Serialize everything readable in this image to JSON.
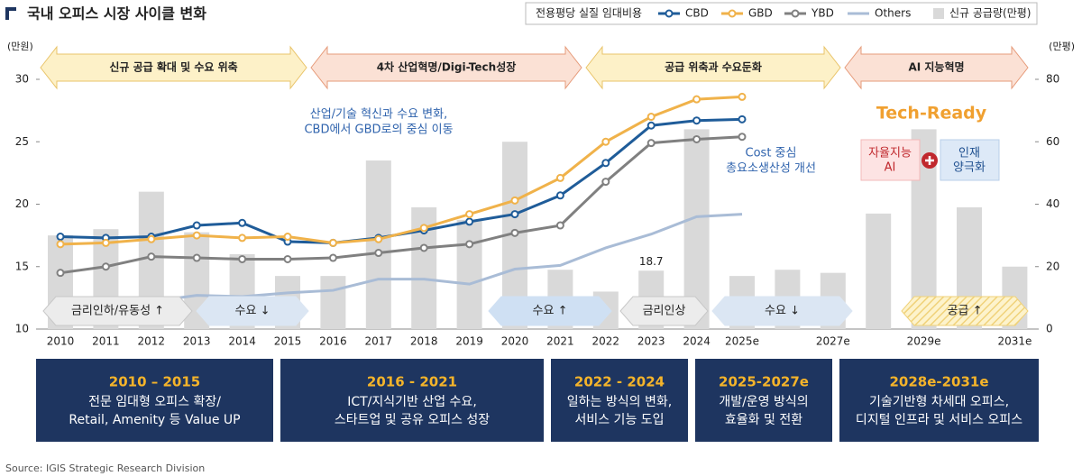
{
  "chart_data": {
    "type": "bar-line",
    "title": "국내 오피스 시장 사이클 변화",
    "legend_title": "전용평당 실질 임대비용",
    "source": "Source: IGIS Strategic Research Division",
    "y_label": "(만원)",
    "y2_label": "(만평)",
    "categories": [
      "2010",
      "2011",
      "2012",
      "2013",
      "2014",
      "2015",
      "2016",
      "2017",
      "2018",
      "2019",
      "2020",
      "2021",
      "2022",
      "2023",
      "2024",
      "2025e",
      null,
      "2027e",
      null,
      "2029e",
      null,
      "2031e"
    ],
    "ylim": [
      10,
      30
    ],
    "yticks": [
      10,
      15,
      20,
      25,
      30
    ],
    "y2lim": [
      0,
      80
    ],
    "y2ticks": [
      0,
      20,
      40,
      60,
      80
    ],
    "series": [
      {
        "name": "신규 공급량(만평)",
        "type": "bar",
        "axis": "y2",
        "color": "#d9d9d9",
        "values": [
          30,
          32,
          44,
          31,
          24,
          17,
          17,
          54,
          39,
          35,
          60,
          19,
          12,
          18.7,
          64,
          17,
          19,
          18,
          37,
          64,
          39,
          20
        ],
        "value_labels": [
          null,
          null,
          null,
          null,
          null,
          null,
          null,
          null,
          null,
          null,
          null,
          null,
          null,
          "18.7",
          null,
          null,
          null,
          null,
          null,
          null,
          null,
          null
        ]
      },
      {
        "name": "CBD",
        "type": "line",
        "color": "#1f5c99",
        "marker": true,
        "values": [
          17.4,
          17.3,
          17.4,
          18.3,
          18.5,
          17.0,
          16.9,
          17.3,
          17.9,
          18.6,
          19.2,
          20.7,
          23.3,
          26.3,
          26.7,
          26.8,
          null,
          null,
          null,
          null,
          null,
          null
        ]
      },
      {
        "name": "GBD",
        "type": "line",
        "color": "#f0b24a",
        "marker": true,
        "values": [
          16.8,
          16.9,
          17.2,
          17.5,
          17.3,
          17.4,
          16.9,
          17.2,
          18.1,
          19.2,
          20.3,
          22.1,
          25.0,
          27.0,
          28.4,
          28.6,
          null,
          null,
          null,
          null,
          null,
          null
        ]
      },
      {
        "name": "YBD",
        "type": "line",
        "color": "#808080",
        "marker": true,
        "values": [
          14.5,
          15.0,
          15.8,
          15.7,
          15.6,
          15.6,
          15.7,
          16.1,
          16.5,
          16.8,
          17.7,
          18.3,
          21.8,
          24.9,
          25.2,
          25.4,
          null,
          null,
          null,
          null,
          null,
          null
        ]
      },
      {
        "name": "Others",
        "type": "line",
        "color": "#a9bcd6",
        "marker": false,
        "values": [
          null,
          null,
          12.2,
          12.7,
          12.6,
          12.9,
          13.1,
          14.0,
          14.0,
          13.6,
          14.8,
          15.1,
          16.5,
          17.6,
          19.0,
          19.2,
          null,
          null,
          null,
          null,
          null,
          null
        ]
      }
    ],
    "eras": [
      "신규 공급 확대 및 수요 위축",
      "4차 산업혁명/Digi-Tech성장",
      "공급 위축과 수요둔화",
      "AI 지능혁명"
    ],
    "trends": [
      "금리인하/유동성 ↑",
      "수요 ↓",
      "수요 ↑",
      "금리인상",
      "수요 ↓",
      "공급 ↑"
    ],
    "callouts": [
      [
        "산업/기술 혁신과 수요 변화,",
        "CBD에서 GBD로의 중심 이동"
      ],
      [
        "Cost 중심",
        "총요소생산성 개선"
      ]
    ],
    "tech": {
      "title": "Tech-Ready",
      "left": [
        "자율지능",
        "AI"
      ],
      "right": [
        "인재",
        "양극화"
      ]
    },
    "periods": [
      {
        "years": "2010 – 2015",
        "lines": [
          "전문 임대형 오피스 확장/",
          "Retail, Amenity 등 Value UP"
        ]
      },
      {
        "years": "2016 - 2021",
        "lines": [
          "ICT/지식기반 산업 수요,",
          "스타트업 및 공유 오피스 성장"
        ]
      },
      {
        "years": "2022 - 2024",
        "lines": [
          "일하는 방식의 변화,",
          "서비스 기능 도입"
        ]
      },
      {
        "years": "2025-2027e",
        "lines": [
          "개발/운영 방식의",
          "효율화 및 전환"
        ]
      },
      {
        "years": "2028e-2031e",
        "lines": [
          "기술기반형 차세대 오피스,",
          "디지털 인프라 및 서비스 오피스"
        ]
      }
    ]
  }
}
